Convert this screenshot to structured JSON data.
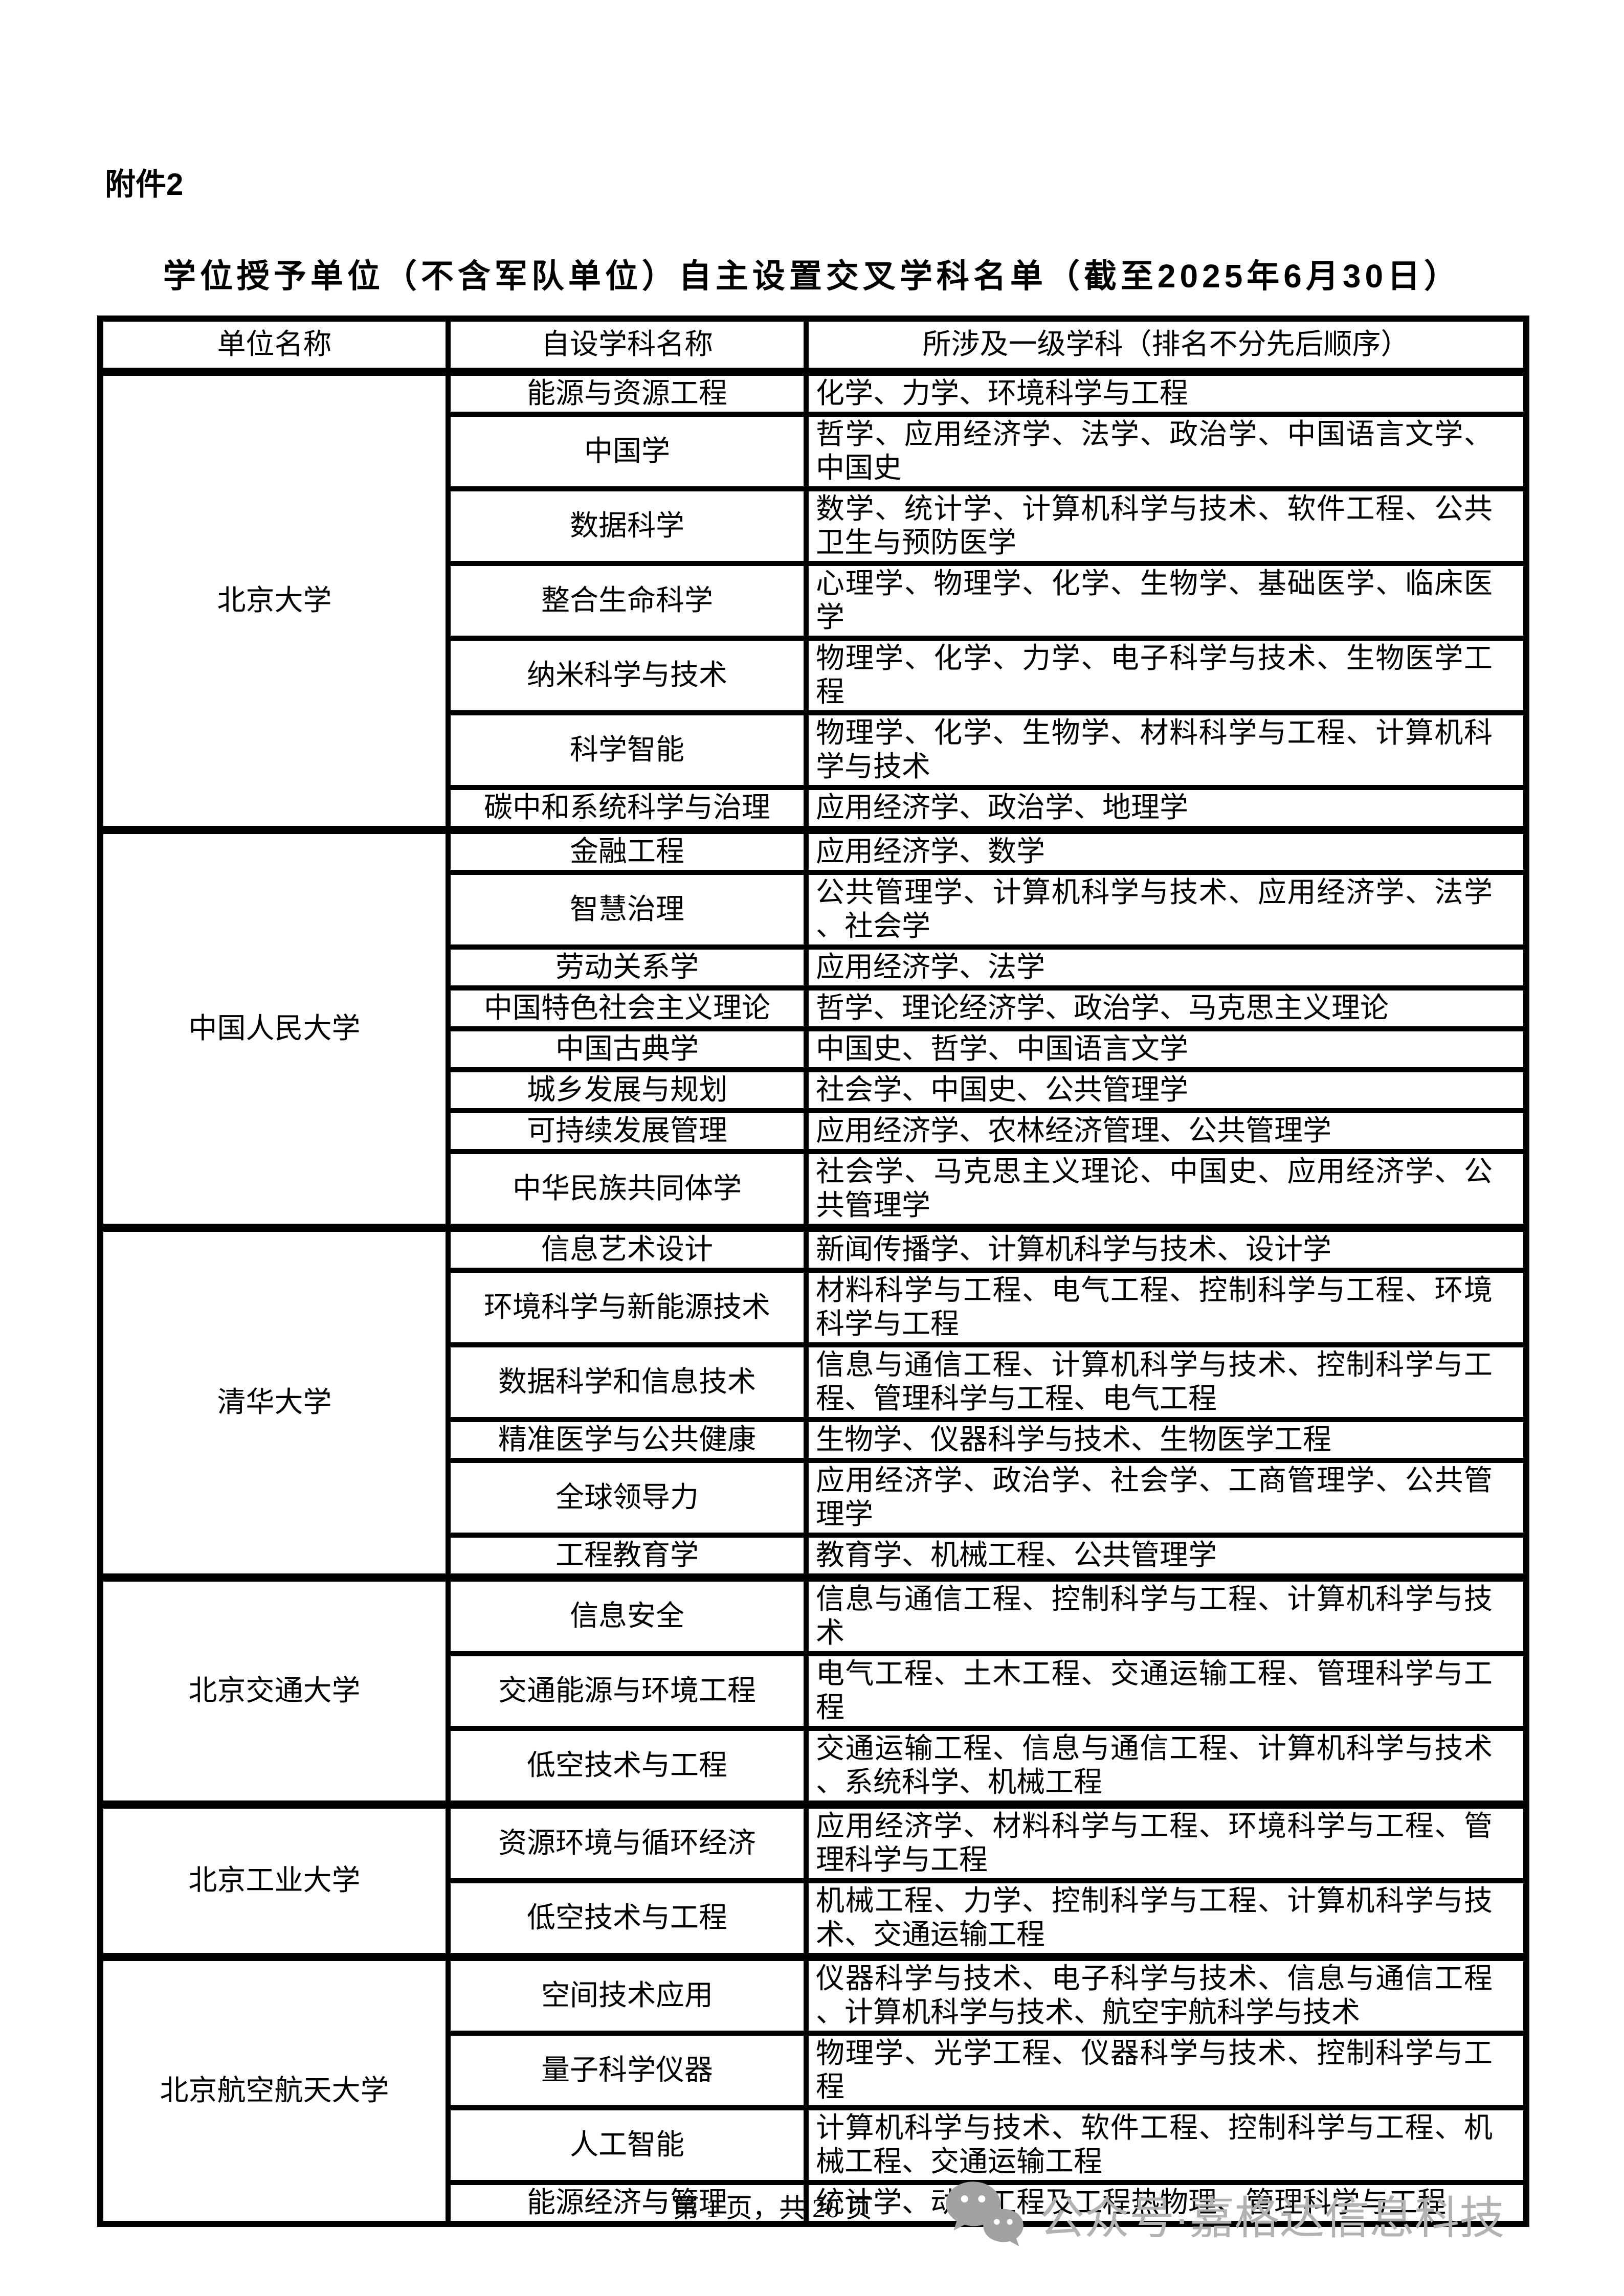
{
  "page": {
    "attachment_label": "附件2",
    "title": "学位授予单位（不含军队单位）自主设置交叉学科名单（截至2025年6月30日）",
    "footer": {
      "page_info": "第 1 页，共 26 页",
      "watermark_icon": "wechat-icon",
      "watermark_text": "公众号·嘉格达信息科技",
      "watermark_color": "#b2b2b2"
    }
  },
  "colors": {
    "text": "#000000",
    "border": "#000000",
    "background": "#ffffff",
    "watermark": "#b2b2b2"
  },
  "table": {
    "headers": [
      "单位名称",
      "自设学科名称",
      "所涉及一级学科（排名不分先后顺序）"
    ],
    "groups": [
      {
        "university": "北京大学",
        "rows": [
          {
            "subject": "能源与资源工程",
            "disciplines": "化学、力学、环境科学与工程"
          },
          {
            "subject": "中国学",
            "disciplines": "哲学、应用经济学、法学、政治学、中国语言文学、中国史"
          },
          {
            "subject": "数据科学",
            "disciplines": "数学、统计学、计算机科学与技术、软件工程、公共卫生与预防医学"
          },
          {
            "subject": "整合生命科学",
            "disciplines": "心理学、物理学、化学、生物学、基础医学、临床医学"
          },
          {
            "subject": "纳米科学与技术",
            "disciplines": "物理学、化学、力学、电子科学与技术、生物医学工程"
          },
          {
            "subject": "科学智能",
            "disciplines": "物理学、化学、生物学、材料科学与工程、计算机科学与技术"
          },
          {
            "subject": "碳中和系统科学与治理",
            "disciplines": "应用经济学、政治学、地理学"
          }
        ]
      },
      {
        "university": "中国人民大学",
        "rows": [
          {
            "subject": "金融工程",
            "disciplines": "应用经济学、数学"
          },
          {
            "subject": "智慧治理",
            "disciplines": "公共管理学、计算机科学与技术、应用经济学、法学、社会学"
          },
          {
            "subject": "劳动关系学",
            "disciplines": "应用经济学、法学"
          },
          {
            "subject": "中国特色社会主义理论",
            "disciplines": "哲学、理论经济学、政治学、马克思主义理论"
          },
          {
            "subject": "中国古典学",
            "disciplines": "中国史、哲学、中国语言文学"
          },
          {
            "subject": "城乡发展与规划",
            "disciplines": "社会学、中国史、公共管理学"
          },
          {
            "subject": "可持续发展管理",
            "disciplines": "应用经济学、农林经济管理、公共管理学"
          },
          {
            "subject": "中华民族共同体学",
            "disciplines": "社会学、马克思主义理论、中国史、应用经济学、公共管理学"
          }
        ]
      },
      {
        "university": "清华大学",
        "rows": [
          {
            "subject": "信息艺术设计",
            "disciplines": "新闻传播学、计算机科学与技术、设计学"
          },
          {
            "subject": "环境科学与新能源技术",
            "disciplines": "材料科学与工程、电气工程、控制科学与工程、环境科学与工程"
          },
          {
            "subject": "数据科学和信息技术",
            "disciplines": "信息与通信工程、计算机科学与技术、控制科学与工程、管理科学与工程、电气工程"
          },
          {
            "subject": "精准医学与公共健康",
            "disciplines": "生物学、仪器科学与技术、生物医学工程"
          },
          {
            "subject": "全球领导力",
            "disciplines": "应用经济学、政治学、社会学、工商管理学、公共管理学"
          },
          {
            "subject": "工程教育学",
            "disciplines": "教育学、机械工程、公共管理学"
          }
        ]
      },
      {
        "university": "北京交通大学",
        "rows": [
          {
            "subject": "信息安全",
            "disciplines": "信息与通信工程、控制科学与工程、计算机科学与技术"
          },
          {
            "subject": "交通能源与环境工程",
            "disciplines": "电气工程、土木工程、交通运输工程、管理科学与工程"
          },
          {
            "subject": "低空技术与工程",
            "disciplines": "交通运输工程、信息与通信工程、计算机科学与技术、系统科学、机械工程"
          }
        ]
      },
      {
        "university": "北京工业大学",
        "rows": [
          {
            "subject": "资源环境与循环经济",
            "disciplines": "应用经济学、材料科学与工程、环境科学与工程、管理科学与工程"
          },
          {
            "subject": "低空技术与工程",
            "disciplines": "机械工程、力学、控制科学与工程、计算机科学与技术、交通运输工程"
          }
        ]
      },
      {
        "university": "北京航空航天大学",
        "rows": [
          {
            "subject": "空间技术应用",
            "disciplines": "仪器科学与技术、电子科学与技术、信息与通信工程、计算机科学与技术、航空宇航科学与技术"
          },
          {
            "subject": "量子科学仪器",
            "disciplines": "物理学、光学工程、仪器科学与技术、控制科学与工程"
          },
          {
            "subject": "人工智能",
            "disciplines": "计算机科学与技术、软件工程、控制科学与工程、机械工程、交通运输工程"
          },
          {
            "subject": "能源经济与管理",
            "disciplines": "统计学、动力工程及工程热物理、管理科学与工程"
          }
        ]
      }
    ]
  }
}
